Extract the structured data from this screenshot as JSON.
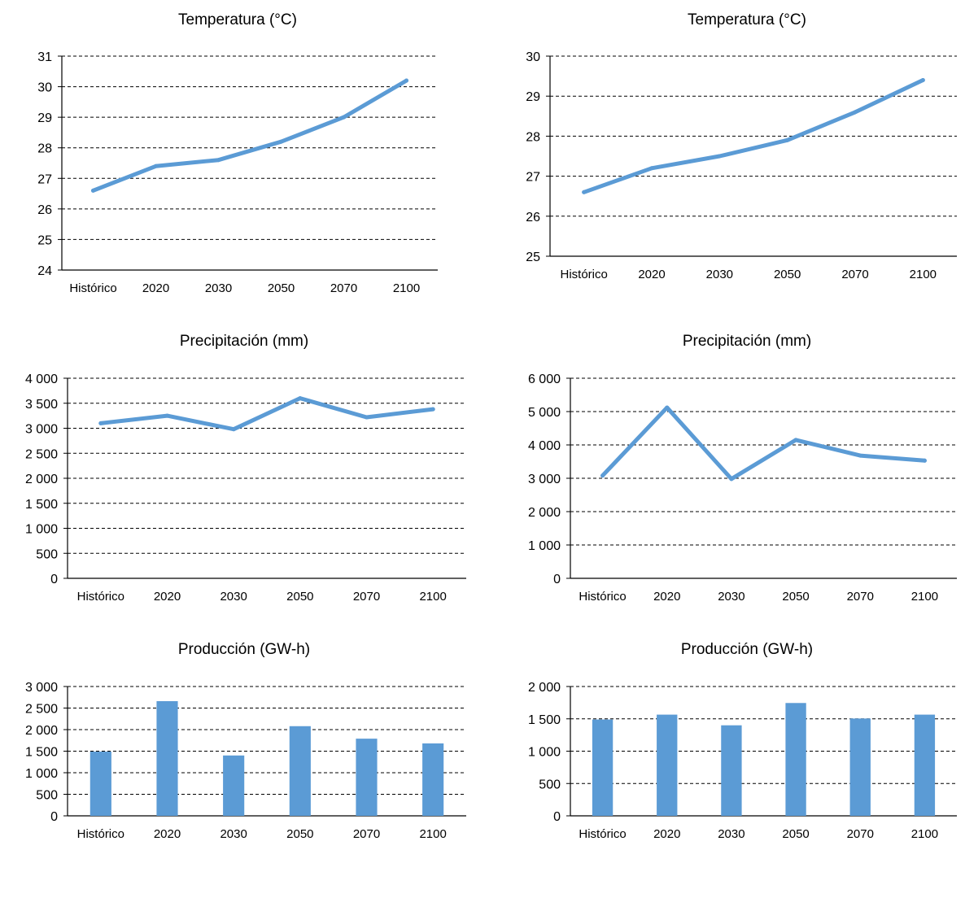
{
  "colors": {
    "series": "#5b9bd5",
    "grid": "#000000",
    "axis": "#000000"
  },
  "chart_data": [
    {
      "type": "line",
      "title": "Temperatura (°C)",
      "categories": [
        "Histórico",
        "2020",
        "2030",
        "2050",
        "2070",
        "2100"
      ],
      "values": [
        26.6,
        27.4,
        27.6,
        28.2,
        29.0,
        30.2
      ],
      "ylim": [
        24,
        31
      ],
      "yticks": [
        "24",
        "25",
        "26",
        "27",
        "28",
        "29",
        "30",
        "31"
      ],
      "grid": "dashed horizontal"
    },
    {
      "type": "line",
      "title": "Temperatura (°C)",
      "categories": [
        "Histórico",
        "2020",
        "2030",
        "2050",
        "2070",
        "2100"
      ],
      "values": [
        26.6,
        27.2,
        27.5,
        27.9,
        28.6,
        29.4
      ],
      "ylim": [
        25,
        30
      ],
      "yticks": [
        "25",
        "26",
        "27",
        "28",
        "29",
        "30"
      ],
      "grid": "dashed horizontal"
    },
    {
      "type": "line",
      "title": "Precipitación (mm)",
      "categories": [
        "Histórico",
        "2020",
        "2030",
        "2050",
        "2070",
        "2100"
      ],
      "values": [
        3100,
        3250,
        2980,
        3600,
        3220,
        3380
      ],
      "ylim": [
        0,
        4000
      ],
      "yticks": [
        "0",
        "500",
        "1 000",
        "1 500",
        "2 000",
        "2 500",
        "3 000",
        "3 500",
        "4 000"
      ],
      "grid": "dashed horizontal"
    },
    {
      "type": "line",
      "title": "Precipitación (mm)",
      "categories": [
        "Histórico",
        "2020",
        "2030",
        "2050",
        "2070",
        "2100"
      ],
      "values": [
        3080,
        5120,
        2980,
        4150,
        3680,
        3530
      ],
      "ylim": [
        0,
        6000
      ],
      "yticks": [
        "0",
        "1 000",
        "2 000",
        "3 000",
        "4 000",
        "5 000",
        "6 000"
      ],
      "grid": "dashed horizontal"
    },
    {
      "type": "bar",
      "title": "Producción (GW-h)",
      "categories": [
        "Histórico",
        "2020",
        "2030",
        "2050",
        "2070",
        "2100"
      ],
      "values": [
        1490,
        2660,
        1400,
        2080,
        1790,
        1680
      ],
      "ylim": [
        0,
        3000
      ],
      "yticks": [
        "0",
        "500",
        "1 000",
        "1 500",
        "2 000",
        "2 500",
        "3 000"
      ],
      "grid": "dashed horizontal"
    },
    {
      "type": "bar",
      "title": "Producción (GW-h)",
      "categories": [
        "Histórico",
        "2020",
        "2030",
        "2050",
        "2070",
        "2100"
      ],
      "values": [
        1490,
        1565,
        1400,
        1745,
        1505,
        1565
      ],
      "ylim": [
        0,
        2000
      ],
      "yticks": [
        "0",
        "500",
        "1 000",
        "1 500",
        "2 000"
      ],
      "grid": "dashed horizontal"
    }
  ]
}
